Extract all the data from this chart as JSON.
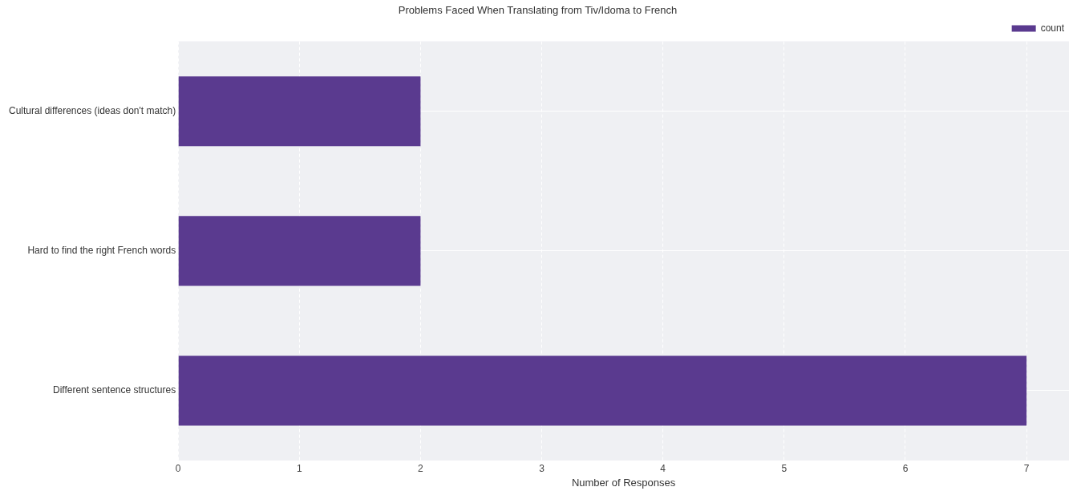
{
  "chart_data": {
    "type": "bar",
    "orientation": "horizontal",
    "title": "Problems Faced When Translating from Tiv/Idoma to French",
    "xlabel": "Number of Responses",
    "categories": [
      "Cultural differences (ideas don't match)",
      "Hard to find the right French words",
      "Different sentence structures"
    ],
    "series": [
      {
        "name": "count",
        "color": "#5a3a8f",
        "values": [
          2,
          2,
          7
        ]
      }
    ],
    "xlim": [
      0,
      7.35
    ],
    "xticks": [
      0,
      1,
      2,
      3,
      4,
      5,
      6,
      7
    ],
    "grid": true,
    "legend": "top right"
  }
}
